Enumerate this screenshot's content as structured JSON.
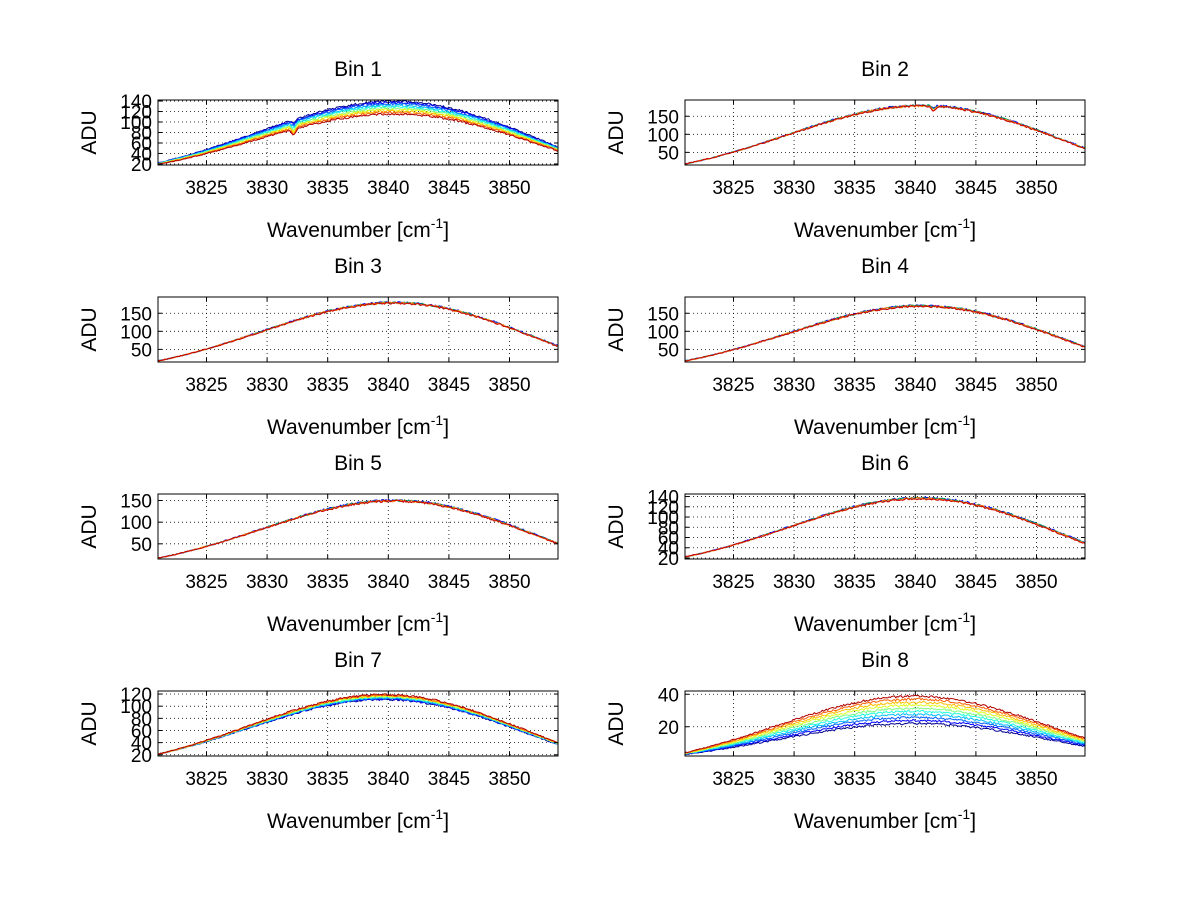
{
  "chart_data": [
    {
      "type": "line",
      "title": "Bin 1",
      "xlabel": "Wavenumber [cm",
      "xlabel_sup": "-1",
      "xlabel_close": "]",
      "ylabel": "ADU",
      "xlim": [
        3821,
        3854
      ],
      "ylim": [
        18,
        142
      ],
      "xticks": [
        3825,
        3830,
        3835,
        3840,
        3845,
        3850
      ],
      "xtick_labels": [
        "3825",
        "3830",
        "3835",
        "3840",
        "3845",
        "3850"
      ],
      "yticks": [
        20,
        40,
        60,
        80,
        100,
        120,
        140
      ],
      "ytick_labels": [
        "20",
        "40",
        "60",
        "80",
        "100",
        "120",
        "140"
      ],
      "peak_center": 3841,
      "peak_width": 12,
      "n_series": 10,
      "series_start": [
        22,
        19
      ],
      "series_peak": [
        142,
        117
      ],
      "series_end": [
        52,
        45
      ],
      "dip": {
        "x": 3832.2,
        "depth": 12
      }
    },
    {
      "type": "line",
      "title": "Bin 2",
      "xlabel": "Wavenumber [cm",
      "xlabel_sup": "-1",
      "xlabel_close": "]",
      "ylabel": "ADU",
      "xlim": [
        3821,
        3854
      ],
      "ylim": [
        15,
        195
      ],
      "xticks": [
        3825,
        3830,
        3835,
        3840,
        3845,
        3850
      ],
      "xtick_labels": [
        "3825",
        "3830",
        "3835",
        "3840",
        "3845",
        "3850"
      ],
      "yticks": [
        50,
        100,
        150
      ],
      "ytick_labels": [
        "50",
        "100",
        "150"
      ],
      "peak_center": 3841,
      "peak_width": 11.5,
      "n_series": 4,
      "series_start": [
        18,
        18
      ],
      "series_peak": [
        183,
        181
      ],
      "series_end": [
        62,
        60
      ],
      "dip": {
        "x": 3841.5,
        "depth": 15
      }
    },
    {
      "type": "line",
      "title": "Bin 3",
      "xlabel": "Wavenumber [cm",
      "xlabel_sup": "-1",
      "xlabel_close": "]",
      "ylabel": "ADU",
      "xlim": [
        3821,
        3854
      ],
      "ylim": [
        15,
        195
      ],
      "xticks": [
        3825,
        3830,
        3835,
        3840,
        3845,
        3850
      ],
      "xtick_labels": [
        "3825",
        "3830",
        "3835",
        "3840",
        "3845",
        "3850"
      ],
      "yticks": [
        50,
        100,
        150
      ],
      "ytick_labels": [
        "50",
        "100",
        "150"
      ],
      "peak_center": 3841,
      "peak_width": 11.5,
      "n_series": 4,
      "series_start": [
        18,
        18
      ],
      "series_peak": [
        183,
        181
      ],
      "series_end": [
        60,
        58
      ],
      "dip": null
    },
    {
      "type": "line",
      "title": "Bin 4",
      "xlabel": "Wavenumber [cm",
      "xlabel_sup": "-1",
      "xlabel_close": "]",
      "ylabel": "ADU",
      "xlim": [
        3821,
        3854
      ],
      "ylim": [
        15,
        195
      ],
      "xticks": [
        3825,
        3830,
        3835,
        3840,
        3845,
        3850
      ],
      "xtick_labels": [
        "3825",
        "3830",
        "3835",
        "3840",
        "3845",
        "3850"
      ],
      "yticks": [
        50,
        100,
        150
      ],
      "ytick_labels": [
        "50",
        "100",
        "150"
      ],
      "peak_center": 3841,
      "peak_width": 11.5,
      "n_series": 4,
      "series_start": [
        18,
        18
      ],
      "series_peak": [
        174,
        172
      ],
      "series_end": [
        58,
        56
      ],
      "dip": null
    },
    {
      "type": "line",
      "title": "Bin 5",
      "xlabel": "Wavenumber [cm",
      "xlabel_sup": "-1",
      "xlabel_close": "]",
      "ylabel": "ADU",
      "xlim": [
        3821,
        3854
      ],
      "ylim": [
        15,
        165
      ],
      "xticks": [
        3825,
        3830,
        3835,
        3840,
        3845,
        3850
      ],
      "xtick_labels": [
        "3825",
        "3830",
        "3835",
        "3840",
        "3845",
        "3850"
      ],
      "yticks": [
        50,
        100,
        150
      ],
      "ytick_labels": [
        "50",
        "100",
        "150"
      ],
      "peak_center": 3841,
      "peak_width": 11.5,
      "n_series": 4,
      "series_start": [
        17,
        17
      ],
      "series_peak": [
        153,
        151
      ],
      "series_end": [
        52,
        50
      ],
      "dip": null
    },
    {
      "type": "line",
      "title": "Bin 6",
      "xlabel": "Wavenumber [cm",
      "xlabel_sup": "-1",
      "xlabel_close": "]",
      "ylabel": "ADU",
      "xlim": [
        3821,
        3854
      ],
      "ylim": [
        18,
        145
      ],
      "xticks": [
        3825,
        3830,
        3835,
        3840,
        3845,
        3850
      ],
      "xtick_labels": [
        "3825",
        "3830",
        "3835",
        "3840",
        "3845",
        "3850"
      ],
      "yticks": [
        20,
        40,
        60,
        80,
        100,
        120,
        140
      ],
      "ytick_labels": [
        "20",
        "40",
        "60",
        "80",
        "100",
        "120",
        "140"
      ],
      "peak_center": 3841,
      "peak_width": 11.5,
      "n_series": 4,
      "series_start": [
        22,
        22
      ],
      "series_peak": [
        140,
        138
      ],
      "series_end": [
        50,
        48
      ],
      "dip": null
    },
    {
      "type": "line",
      "title": "Bin 7",
      "xlabel": "Wavenumber [cm",
      "xlabel_sup": "-1",
      "xlabel_close": "]",
      "ylabel": "ADU",
      "xlim": [
        3821,
        3854
      ],
      "ylim": [
        18,
        125
      ],
      "xticks": [
        3825,
        3830,
        3835,
        3840,
        3845,
        3850
      ],
      "xtick_labels": [
        "3825",
        "3830",
        "3835",
        "3840",
        "3845",
        "3850"
      ],
      "yticks": [
        20,
        40,
        60,
        80,
        100,
        120
      ],
      "ytick_labels": [
        "20",
        "40",
        "60",
        "80",
        "100",
        "120"
      ],
      "peak_center": 3840,
      "peak_width": 11.5,
      "n_series": 10,
      "series_start": [
        21,
        21
      ],
      "series_peak": [
        112,
        120
      ],
      "series_end": [
        37,
        40
      ],
      "dip": null
    },
    {
      "type": "line",
      "title": "Bin 8",
      "xlabel": "Wavenumber [cm",
      "xlabel_sup": "-1",
      "xlabel_close": "]",
      "ylabel": "ADU",
      "xlim": [
        3821,
        3854
      ],
      "ylim": [
        2,
        42
      ],
      "xticks": [
        3825,
        3830,
        3835,
        3840,
        3845,
        3850
      ],
      "xtick_labels": [
        "3825",
        "3830",
        "3835",
        "3840",
        "3845",
        "3850"
      ],
      "yticks": [
        20,
        40
      ],
      "ytick_labels": [
        "20",
        "40"
      ],
      "peak_center": 3840,
      "peak_width": 11.5,
      "n_series": 10,
      "series_start": [
        3,
        4
      ],
      "series_peak": [
        22,
        39
      ],
      "series_end": [
        8,
        13
      ],
      "dip": null
    }
  ]
}
